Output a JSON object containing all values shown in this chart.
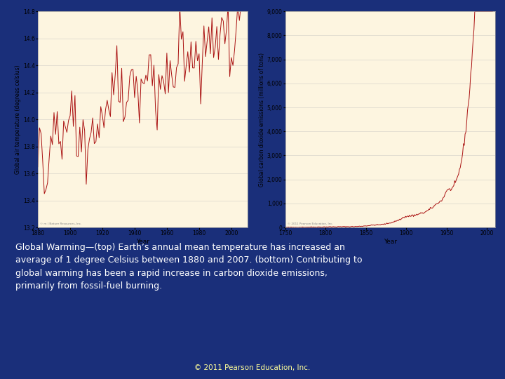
{
  "bg_color": "#1a2f7a",
  "plot_bg_color": "#fdf5e0",
  "line_color": "#aa1111",
  "text_color": "#ffffff",
  "caption_color": "#ffffff",
  "copyright_color": "#ffff99",
  "plot1": {
    "ylabel": "Global air temperature (degrees celsius)",
    "xlabel": "Year",
    "xlim": [
      1880,
      2010
    ],
    "ylim": [
      13.2,
      14.8
    ],
    "yticks": [
      13.2,
      13.4,
      13.6,
      13.8,
      14.0,
      14.2,
      14.4,
      14.6,
      14.8
    ],
    "xticks": [
      1880,
      1900,
      1920,
      1940,
      1960,
      1980,
      2000
    ]
  },
  "plot2": {
    "ylabel": "Global carbon dioxide emissions (millions of tons)",
    "xlabel": "Year",
    "xlim": [
      1750,
      2010
    ],
    "ylim": [
      0,
      9000
    ],
    "yticks": [
      0,
      1000,
      2000,
      3000,
      4000,
      5000,
      6000,
      7000,
      8000,
      9000
    ],
    "xticks": [
      1750,
      1800,
      1850,
      1900,
      1950,
      2000
    ]
  },
  "caption": "Global Warming—(top) Earth’s annual mean temperature has increased an\naverage of 1 degree Celsius between 1880 and 2007. (bottom) Contributing to\nglobal warming has been a rapid increase in carbon dioxide emissions,\nprimarily from fossil-fuel burning.",
  "copyright": "© 2011 Pearson Education, Inc."
}
